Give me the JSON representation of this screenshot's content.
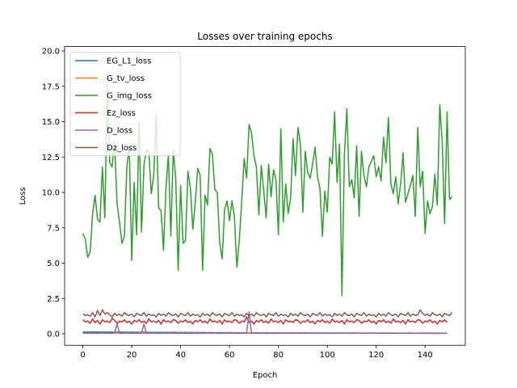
{
  "chart_data": {
    "type": "line",
    "title": "Losses over training epochs",
    "xlabel": "Epoch",
    "ylabel": "Loss",
    "xlim": [
      -7.45,
      156.45
    ],
    "ylim": [
      -0.81,
      20.31
    ],
    "xticks": [
      0,
      20,
      40,
      60,
      80,
      100,
      120,
      140
    ],
    "yticks": [
      0.0,
      2.5,
      5.0,
      7.5,
      10.0,
      12.5,
      15.0,
      17.5,
      20.0
    ],
    "ytick_labels": [
      "0.0",
      "2.5",
      "5.0",
      "7.5",
      "10.0",
      "12.5",
      "15.0",
      "17.5",
      "20.0"
    ],
    "grid": false,
    "legend_position": "upper left",
    "x": {
      "start": 0,
      "end": 149,
      "step": 1
    },
    "series": [
      {
        "name": "EG_L1_loss",
        "color": "#1f77b4",
        "values": [
          0.15,
          0.12,
          0.13,
          0.12,
          0.14,
          0.12,
          0.13,
          0.12,
          0.14,
          0.13,
          0.12,
          0.13,
          0.12,
          0.11,
          0.13,
          0.12,
          0.12,
          0.11,
          0.12,
          0.11,
          0.12,
          0.11,
          0.12,
          0.11,
          0.11,
          0.12,
          0.11,
          0.1,
          0.11,
          0.1,
          0.11,
          0.1,
          0.1,
          0.11,
          0.1,
          0.1,
          0.1,
          0.11,
          0.1,
          0.09,
          0.1,
          0.09,
          0.1,
          0.09,
          0.1,
          0.09,
          0.09,
          0.1,
          0.09,
          0.09,
          0.09,
          0.08,
          0.09,
          0.09,
          0.08,
          0.09,
          0.08,
          0.09,
          0.08,
          0.08,
          0.09,
          0.08,
          0.08,
          0.08,
          0.08,
          0.07,
          0.08,
          0.08,
          0.07,
          0.08,
          0.08,
          0.07,
          0.08,
          0.07,
          0.07,
          0.08,
          0.07,
          0.07,
          0.07,
          0.07,
          0.07,
          0.06,
          0.07,
          0.07,
          0.06,
          0.07,
          0.07,
          0.06,
          0.07,
          0.06,
          0.06,
          0.07,
          0.06,
          0.06,
          0.06,
          0.06,
          0.06,
          0.06,
          0.06,
          0.06,
          0.06,
          0.05,
          0.06,
          0.06,
          0.05,
          0.06,
          0.05,
          0.06,
          0.05,
          0.05,
          0.06,
          0.05,
          0.05,
          0.05,
          0.05,
          0.05,
          0.05,
          0.05,
          0.05,
          0.05,
          0.05,
          0.05,
          0.05,
          0.05,
          0.04,
          0.05,
          0.05,
          0.04,
          0.05,
          0.04,
          0.05,
          0.04,
          0.04,
          0.05,
          0.04,
          0.04,
          0.04,
          0.04,
          0.04,
          0.04,
          0.04,
          0.04,
          0.04,
          0.04,
          0.04,
          0.04,
          0.04,
          0.04,
          0.04,
          0.04
        ]
      },
      {
        "name": "G_tv_loss",
        "color": "#ff7f0e",
        "values": [
          0.06,
          0.05,
          0.05,
          0.06,
          0.05,
          0.05,
          0.04,
          0.06,
          0.05,
          0.05,
          0.06,
          0.04,
          0.05,
          0.05,
          0.06,
          0.05,
          0.04,
          0.05,
          0.05,
          0.06,
          0.05,
          0.04,
          0.05,
          0.06,
          0.05,
          0.05,
          0.04,
          0.05,
          0.05,
          0.06,
          0.05,
          0.04,
          0.05,
          0.05,
          0.05,
          0.06,
          0.05,
          0.04,
          0.05,
          0.05,
          0.05,
          0.06,
          0.05,
          0.04,
          0.05,
          0.05,
          0.05,
          0.05,
          0.06,
          0.04,
          0.05,
          0.05,
          0.05,
          0.05,
          0.06,
          0.05,
          0.04,
          0.05,
          0.05,
          0.05,
          0.05,
          0.05,
          0.06,
          0.04,
          0.05,
          0.05,
          0.05,
          0.05,
          0.05,
          0.05,
          0.06,
          0.05,
          0.04,
          0.05,
          0.05,
          0.05,
          0.05,
          0.05,
          0.05,
          0.06,
          0.05,
          0.04,
          0.05,
          0.05,
          0.05,
          0.05,
          0.05,
          0.05,
          0.05,
          0.06,
          0.05,
          0.04,
          0.05,
          0.05,
          0.05,
          0.05,
          0.05,
          0.05,
          0.05,
          0.05,
          0.06,
          0.05,
          0.04,
          0.05,
          0.05,
          0.05,
          0.05,
          0.05,
          0.05,
          0.05,
          0.05,
          0.06,
          0.05,
          0.04,
          0.05,
          0.05,
          0.05,
          0.05,
          0.05,
          0.05,
          0.05,
          0.05,
          0.06,
          0.05,
          0.04,
          0.05,
          0.05,
          0.05,
          0.05,
          0.05,
          0.05,
          0.05,
          0.05,
          0.06,
          0.05,
          0.04,
          0.05,
          0.05,
          0.05,
          0.05,
          0.05,
          0.05,
          0.05,
          0.05,
          0.06,
          0.05,
          0.04,
          0.05,
          0.05,
          0.05
        ]
      },
      {
        "name": "G_img_loss",
        "color": "#2ca02c",
        "values": [
          7.1,
          6.7,
          5.4,
          5.8,
          8.5,
          9.8,
          8.1,
          7.9,
          11.8,
          8.2,
          17.6,
          12.1,
          11.8,
          13.6,
          9.2,
          7.9,
          6.4,
          6.9,
          11.8,
          13.2,
          5.2,
          10.7,
          7.0,
          15.0,
          7.2,
          11.9,
          13.0,
          12.9,
          9.9,
          11.2,
          15.5,
          8.9,
          8.7,
          5.9,
          10.3,
          12.7,
          6.9,
          13.0,
          11.0,
          4.5,
          10.5,
          6.4,
          6.6,
          11.5,
          10.3,
          7.4,
          9.3,
          11.7,
          11.2,
          4.5,
          9.8,
          9.1,
          13.1,
          12.7,
          10.2,
          10.0,
          6.4,
          5.3,
          8.8,
          9.4,
          8.0,
          9.4,
          8.3,
          4.7,
          6.6,
          9.4,
          12.4,
          11.0,
          14.8,
          14.2,
          12.6,
          11.8,
          8.4,
          11.9,
          10.1,
          8.2,
          12.0,
          9.7,
          11.6,
          10.9,
          7.0,
          14.5,
          7.9,
          10.6,
          8.5,
          9.6,
          13.8,
          11.2,
          14.6,
          13.4,
          8.6,
          12.9,
          11.4,
          11.0,
          12.0,
          13.2,
          11.1,
          10.3,
          6.9,
          10.1,
          8.6,
          12.5,
          12.0,
          15.7,
          10.7,
          13.4,
          2.7,
          12.7,
          15.9,
          10.4,
          10.9,
          9.6,
          13.3,
          8.3,
          12.9,
          11.2,
          10.4,
          11.8,
          12.2,
          12.6,
          11.1,
          11.8,
          10.8,
          13.9,
          12.1,
          15.3,
          10.6,
          9.9,
          11.1,
          9.2,
          10.6,
          12.8,
          9.3,
          9.9,
          10.5,
          11.2,
          8.3,
          14.6,
          10.4,
          11.5,
          7.1,
          9.4,
          8.5,
          9.0,
          11.3,
          9.1,
          16.2,
          13.6,
          7.8,
          15.7,
          9.5,
          9.7
        ]
      },
      {
        "name": "Ez_loss",
        "color": "#d62728",
        "values": [
          1.0,
          0.85,
          0.9,
          0.75,
          1.05,
          0.8,
          0.95,
          0.7,
          1.0,
          0.85,
          0.9,
          0.8,
          1.1,
          0.95,
          0.75,
          0.9,
          0.85,
          1.0,
          0.8,
          0.9,
          0.7,
          0.95,
          0.85,
          1.0,
          0.8,
          0.9,
          0.75,
          1.05,
          0.85,
          0.9,
          0.8,
          0.95,
          0.7,
          1.0,
          0.85,
          0.9,
          0.8,
          1.0,
          0.95,
          0.75,
          0.9,
          0.85,
          1.0,
          0.8,
          0.9,
          0.7,
          0.95,
          0.85,
          1.0,
          0.8,
          0.9,
          0.75,
          1.05,
          0.85,
          0.9,
          0.8,
          0.95,
          0.7,
          1.0,
          0.85,
          0.9,
          0.8,
          1.0,
          0.95,
          0.75,
          0.9,
          0.85,
          1.2,
          0.8,
          0.9,
          0.7,
          0.95,
          0.85,
          1.0,
          0.8,
          0.9,
          0.75,
          1.05,
          0.85,
          0.9,
          0.8,
          0.95,
          0.7,
          1.0,
          0.85,
          0.9,
          0.8,
          1.0,
          0.95,
          0.75,
          0.9,
          0.85,
          1.0,
          0.8,
          0.9,
          0.7,
          0.95,
          0.85,
          1.0,
          0.8,
          0.9,
          0.75,
          1.05,
          0.85,
          0.9,
          0.8,
          0.95,
          0.7,
          1.0,
          0.85,
          0.9,
          0.8,
          1.0,
          0.95,
          0.75,
          0.9,
          0.85,
          1.0,
          0.8,
          0.9,
          0.7,
          0.95,
          0.85,
          1.0,
          0.8,
          0.9,
          0.75,
          1.05,
          0.85,
          0.9,
          0.8,
          0.95,
          0.7,
          1.0,
          0.85,
          0.9,
          0.8,
          1.0,
          0.95,
          0.75,
          0.9,
          0.85,
          1.0,
          0.8,
          0.9,
          0.7,
          0.95,
          0.85,
          1.0,
          0.8
        ]
      },
      {
        "name": "D_loss",
        "color": "#9467bd",
        "values": [
          0.05,
          0.04,
          0.05,
          0.06,
          0.03,
          0.05,
          0.04,
          0.05,
          0.06,
          0.04,
          0.05,
          0.05,
          0.04,
          0.06,
          0.7,
          0.05,
          0.04,
          0.05,
          0.05,
          0.06,
          0.04,
          0.05,
          0.05,
          0.04,
          0.06,
          0.7,
          0.05,
          0.04,
          0.05,
          0.05,
          0.06,
          0.04,
          0.05,
          0.05,
          0.04,
          0.06,
          0.05,
          0.05,
          0.04,
          0.05,
          0.06,
          0.05,
          0.04,
          0.05,
          0.05,
          0.04,
          0.06,
          0.05,
          0.05,
          0.04,
          0.05,
          0.06,
          0.05,
          0.04,
          0.05,
          0.05,
          0.04,
          0.06,
          0.05,
          0.05,
          0.04,
          0.05,
          0.06,
          0.05,
          0.04,
          0.05,
          0.05,
          0.04,
          1.55,
          0.05,
          0.05,
          0.04,
          0.05,
          0.06,
          0.05,
          0.04,
          0.05,
          0.05,
          0.04,
          0.06,
          0.05,
          0.05,
          0.04,
          0.05,
          0.06,
          0.05,
          0.04,
          0.05,
          0.05,
          0.04,
          0.06,
          0.05,
          0.05,
          0.04,
          0.05,
          0.06,
          0.05,
          0.04,
          0.05,
          0.05,
          0.04,
          0.06,
          0.05,
          0.05,
          0.04,
          0.05,
          0.06,
          0.05,
          0.04,
          0.05,
          0.05,
          0.04,
          0.06,
          0.05,
          0.05,
          0.04,
          0.05,
          0.06,
          0.05,
          0.04,
          0.05,
          0.05,
          0.04,
          0.06,
          0.05,
          0.05,
          0.04,
          0.05,
          0.06,
          0.05,
          0.04,
          0.05,
          0.05,
          0.04,
          0.06,
          0.05,
          0.05,
          0.04,
          0.05,
          0.06,
          0.05,
          0.04,
          0.05,
          0.05,
          0.04,
          0.06,
          0.05,
          0.05,
          0.04,
          0.05
        ]
      },
      {
        "name": "Dz_loss",
        "color": "#8c564b",
        "values": [
          1.4,
          1.3,
          1.35,
          1.25,
          1.5,
          1.2,
          1.65,
          1.3,
          1.7,
          1.4,
          1.5,
          1.35,
          1.2,
          1.45,
          1.3,
          1.4,
          1.25,
          1.5,
          1.35,
          1.3,
          1.4,
          1.2,
          1.45,
          1.35,
          1.3,
          1.5,
          1.25,
          1.4,
          1.3,
          1.35,
          1.2,
          1.45,
          1.3,
          1.4,
          1.25,
          1.5,
          1.35,
          1.3,
          1.4,
          1.2,
          1.45,
          1.35,
          1.3,
          1.5,
          1.25,
          1.4,
          1.3,
          1.35,
          1.2,
          1.45,
          1.3,
          1.4,
          1.25,
          1.5,
          1.35,
          1.3,
          1.4,
          1.2,
          1.45,
          1.35,
          1.3,
          1.5,
          1.25,
          1.4,
          1.3,
          1.35,
          1.2,
          1.45,
          1.3,
          1.4,
          1.25,
          1.5,
          1.35,
          1.3,
          1.4,
          1.2,
          1.45,
          1.35,
          1.3,
          1.5,
          1.25,
          1.4,
          1.3,
          1.35,
          1.2,
          1.45,
          1.3,
          1.4,
          1.25,
          1.5,
          1.35,
          1.3,
          1.4,
          1.2,
          1.45,
          1.35,
          1.3,
          1.5,
          1.25,
          1.4,
          1.3,
          1.35,
          1.2,
          1.45,
          1.3,
          1.4,
          1.25,
          1.5,
          1.35,
          1.3,
          1.4,
          1.2,
          1.45,
          1.35,
          1.3,
          1.5,
          1.25,
          1.4,
          1.3,
          1.35,
          1.2,
          1.45,
          1.3,
          1.4,
          1.25,
          1.5,
          1.35,
          1.3,
          1.4,
          1.2,
          1.45,
          1.35,
          1.3,
          1.5,
          1.25,
          1.4,
          1.3,
          1.35,
          1.7,
          1.45,
          1.3,
          1.4,
          1.25,
          1.5,
          1.35,
          1.3,
          1.4,
          1.2,
          1.45,
          1.35,
          1.3,
          1.5
        ]
      }
    ]
  }
}
